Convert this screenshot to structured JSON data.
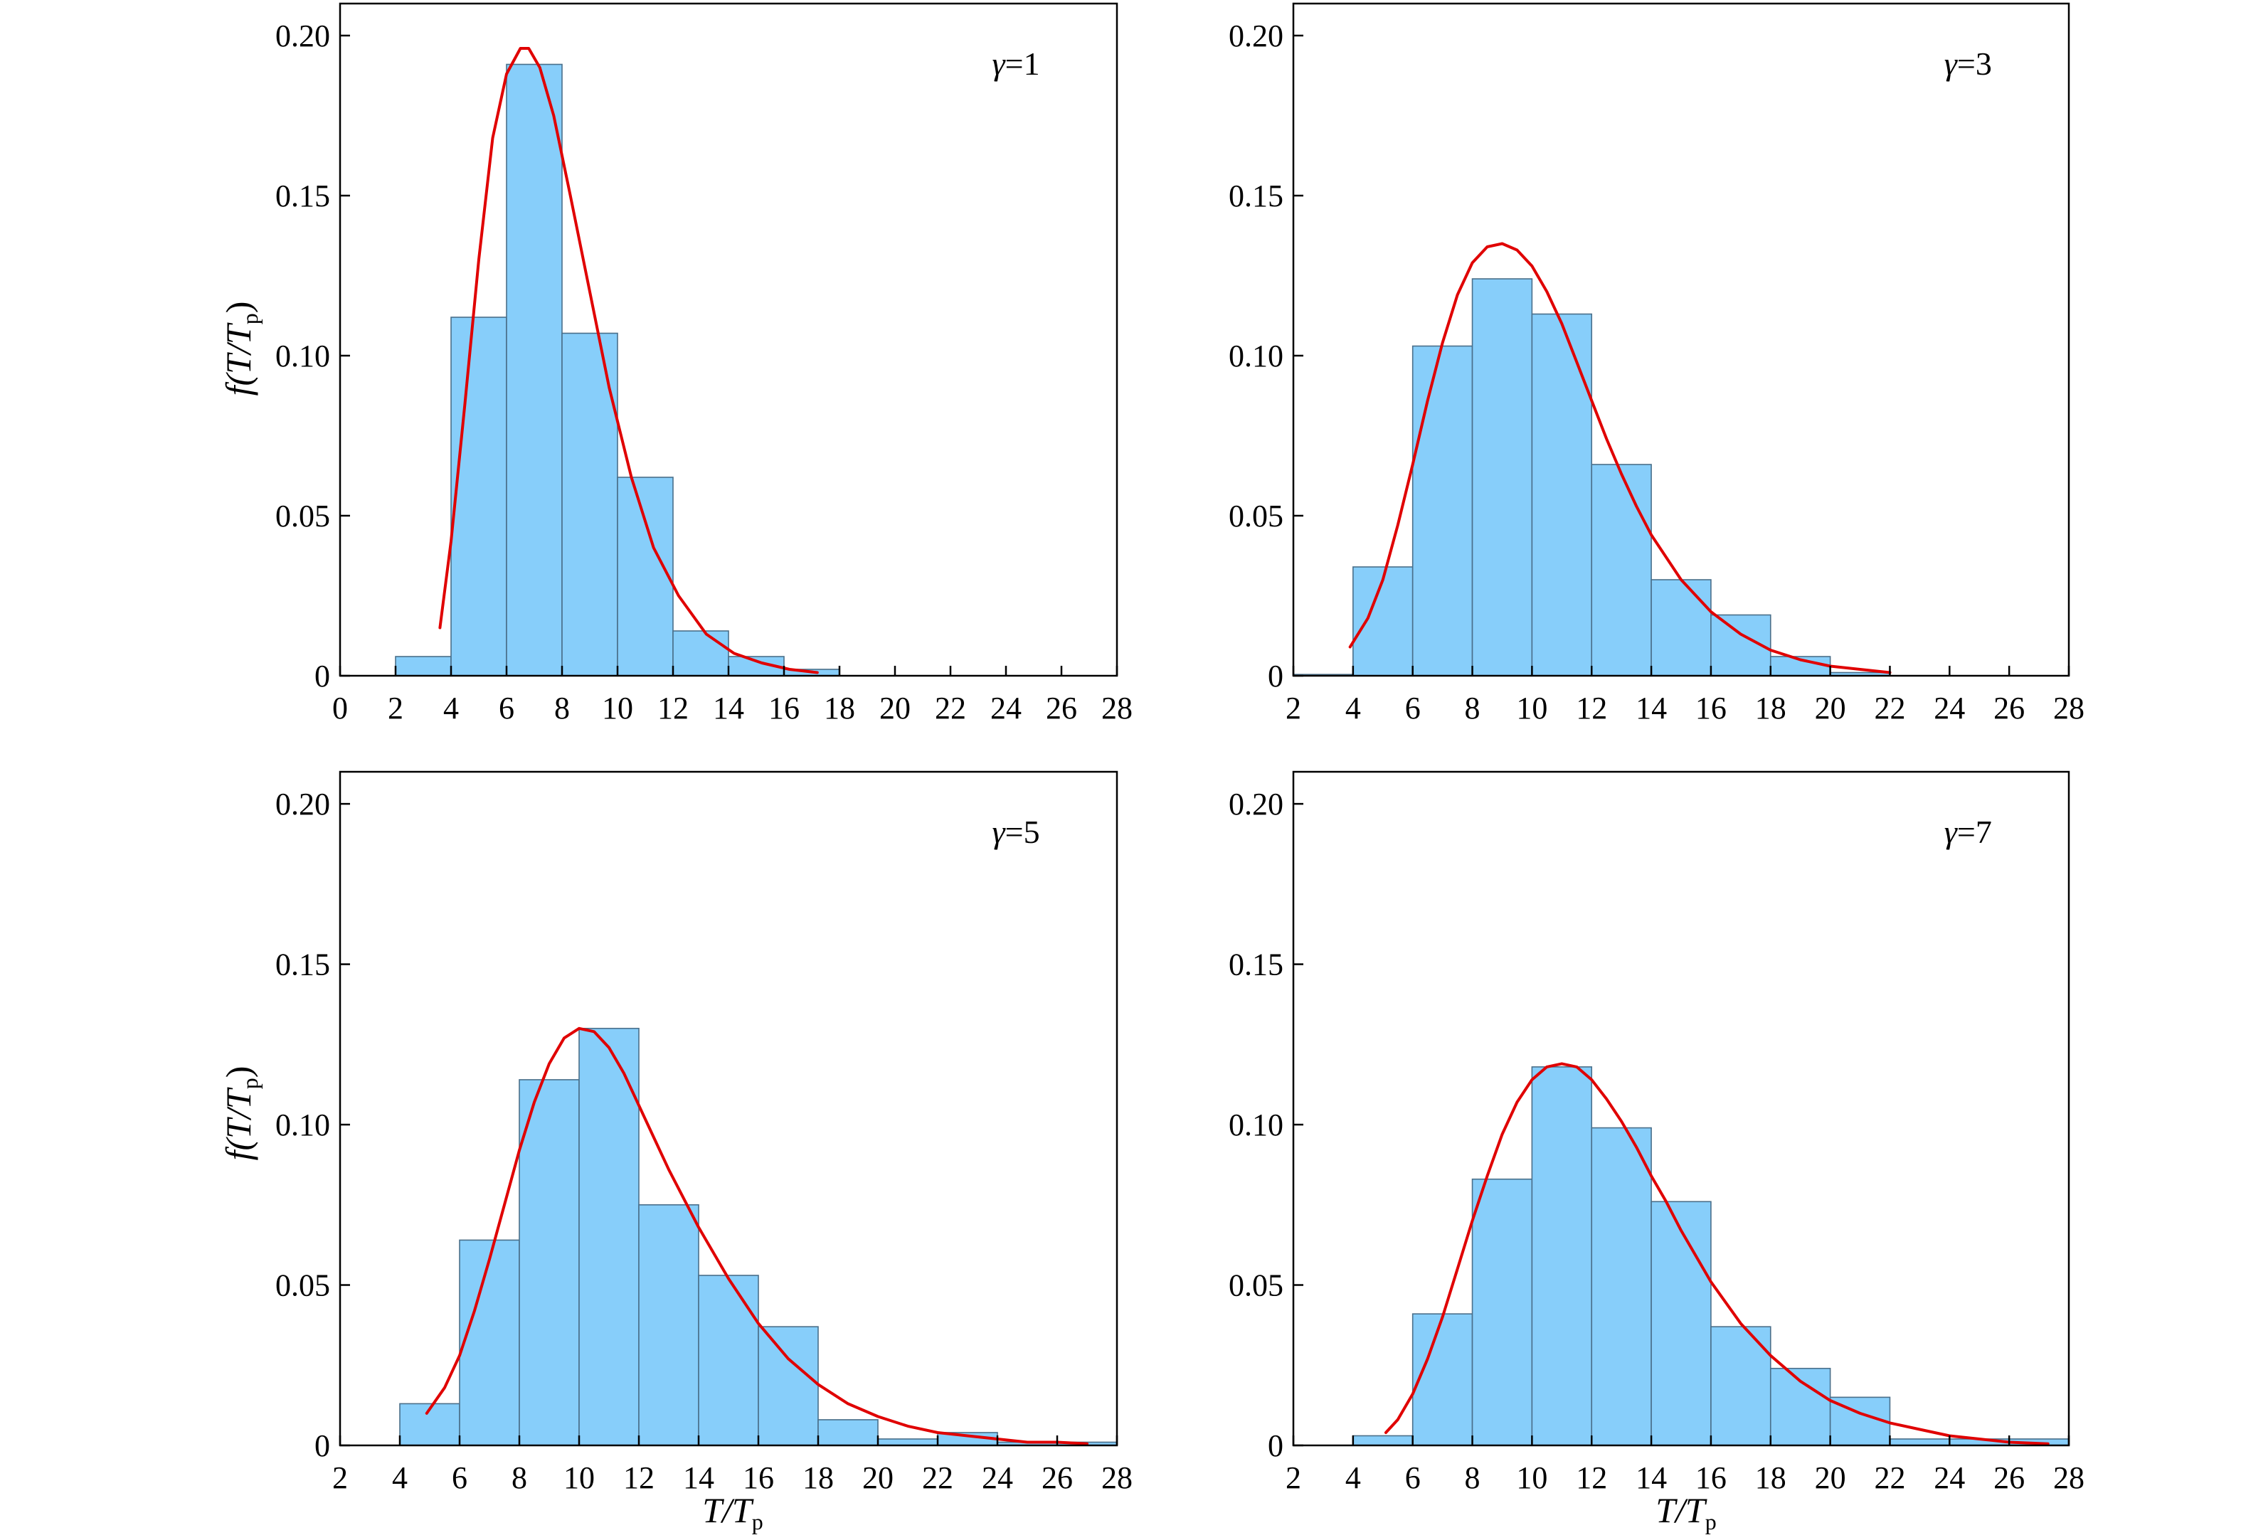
{
  "figure": {
    "ylabel_main": "f(T/T",
    "ylabel_sub": "p",
    "ylabel_close": ")",
    "xlabel_main": "T/T",
    "xlabel_sub": "p"
  },
  "chart_data": [
    {
      "type": "bar",
      "panel": "top-left",
      "annotation_symbol": "γ",
      "annotation_value": "=1",
      "xlim": [
        0,
        28
      ],
      "ylim": [
        0,
        0.21
      ],
      "xticks": [
        "0",
        "2",
        "4",
        "6",
        "8",
        "10",
        "12",
        "14",
        "16",
        "18",
        "20",
        "22",
        "24",
        "26",
        "28"
      ],
      "yticks": [
        "0",
        "0.05",
        "0.10",
        "0.15",
        "0.20"
      ],
      "bins": [
        {
          "x0": 2,
          "x1": 4,
          "y": 0.006
        },
        {
          "x0": 4,
          "x1": 6,
          "y": 0.112
        },
        {
          "x0": 6,
          "x1": 8,
          "y": 0.191
        },
        {
          "x0": 8,
          "x1": 10,
          "y": 0.107
        },
        {
          "x0": 10,
          "x1": 12,
          "y": 0.062
        },
        {
          "x0": 12,
          "x1": 14,
          "y": 0.014
        },
        {
          "x0": 14,
          "x1": 16,
          "y": 0.006
        },
        {
          "x0": 16,
          "x1": 18,
          "y": 0.002
        }
      ],
      "curve": {
        "x": [
          3.6,
          4.0,
          4.5,
          5.0,
          5.5,
          6.0,
          6.5,
          6.8,
          7.2,
          7.7,
          8.3,
          9.0,
          9.7,
          10.5,
          11.3,
          12.2,
          13.2,
          14.2,
          15.2,
          16.2,
          17.2
        ],
        "y": [
          0.015,
          0.042,
          0.085,
          0.13,
          0.168,
          0.188,
          0.196,
          0.196,
          0.19,
          0.175,
          0.15,
          0.12,
          0.09,
          0.062,
          0.04,
          0.025,
          0.013,
          0.007,
          0.004,
          0.002,
          0.001
        ]
      }
    },
    {
      "type": "bar",
      "panel": "top-right",
      "annotation_symbol": "γ",
      "annotation_value": "=3",
      "xlim": [
        2,
        28
      ],
      "ylim": [
        0,
        0.21
      ],
      "xticks": [
        "2",
        "4",
        "6",
        "8",
        "10",
        "12",
        "14",
        "16",
        "18",
        "20",
        "22",
        "24",
        "26",
        "28"
      ],
      "yticks": [
        "0",
        "0.05",
        "0.10",
        "0.15",
        "0.20"
      ],
      "bins": [
        {
          "x0": 2,
          "x1": 4,
          "y": 0.0004
        },
        {
          "x0": 4,
          "x1": 6,
          "y": 0.034
        },
        {
          "x0": 6,
          "x1": 8,
          "y": 0.103
        },
        {
          "x0": 8,
          "x1": 10,
          "y": 0.124
        },
        {
          "x0": 10,
          "x1": 12,
          "y": 0.113
        },
        {
          "x0": 12,
          "x1": 14,
          "y": 0.066
        },
        {
          "x0": 14,
          "x1": 16,
          "y": 0.03
        },
        {
          "x0": 16,
          "x1": 18,
          "y": 0.019
        },
        {
          "x0": 18,
          "x1": 20,
          "y": 0.006
        },
        {
          "x0": 20,
          "x1": 22,
          "y": 0.001
        }
      ],
      "curve": {
        "x": [
          3.9,
          4.5,
          5.0,
          5.5,
          6.0,
          6.5,
          7.0,
          7.5,
          8.0,
          8.5,
          9.0,
          9.5,
          10.0,
          10.5,
          11.0,
          11.5,
          12.0,
          12.5,
          13.0,
          13.5,
          14.0,
          15.0,
          16.0,
          17.0,
          18.0,
          19.0,
          20.0,
          21.0,
          22.0
        ],
        "y": [
          0.009,
          0.018,
          0.03,
          0.047,
          0.066,
          0.086,
          0.104,
          0.119,
          0.129,
          0.134,
          0.135,
          0.133,
          0.128,
          0.12,
          0.11,
          0.098,
          0.086,
          0.074,
          0.063,
          0.053,
          0.044,
          0.03,
          0.02,
          0.013,
          0.008,
          0.005,
          0.003,
          0.002,
          0.001
        ]
      }
    },
    {
      "type": "bar",
      "panel": "bottom-left",
      "annotation_symbol": "γ",
      "annotation_value": "=5",
      "xlim": [
        2,
        28
      ],
      "ylim": [
        0,
        0.21
      ],
      "xticks": [
        "2",
        "4",
        "6",
        "8",
        "10",
        "12",
        "14",
        "16",
        "18",
        "20",
        "22",
        "24",
        "26",
        "28"
      ],
      "yticks": [
        "0",
        "0.05",
        "0.10",
        "0.15",
        "0.20"
      ],
      "bins": [
        {
          "x0": 4,
          "x1": 6,
          "y": 0.013
        },
        {
          "x0": 6,
          "x1": 8,
          "y": 0.064
        },
        {
          "x0": 8,
          "x1": 10,
          "y": 0.114
        },
        {
          "x0": 10,
          "x1": 12,
          "y": 0.13
        },
        {
          "x0": 12,
          "x1": 14,
          "y": 0.075
        },
        {
          "x0": 14,
          "x1": 16,
          "y": 0.053
        },
        {
          "x0": 16,
          "x1": 18,
          "y": 0.037
        },
        {
          "x0": 18,
          "x1": 20,
          "y": 0.008
        },
        {
          "x0": 20,
          "x1": 22,
          "y": 0.002
        },
        {
          "x0": 22,
          "x1": 24,
          "y": 0.004
        },
        {
          "x0": 24,
          "x1": 26,
          "y": 0.001
        },
        {
          "x0": 26,
          "x1": 28,
          "y": 0.001
        }
      ],
      "curve": {
        "x": [
          4.9,
          5.5,
          6.0,
          6.5,
          7.0,
          7.5,
          8.0,
          8.5,
          9.0,
          9.5,
          10.0,
          10.5,
          11.0,
          11.5,
          12.0,
          12.5,
          13.0,
          13.5,
          14.0,
          15.0,
          16.0,
          17.0,
          18.0,
          19.0,
          20.0,
          21.0,
          22.0,
          23.0,
          24.0,
          25.0,
          26.0,
          27.0
        ],
        "y": [
          0.01,
          0.018,
          0.028,
          0.042,
          0.058,
          0.075,
          0.092,
          0.107,
          0.119,
          0.127,
          0.13,
          0.129,
          0.124,
          0.116,
          0.106,
          0.096,
          0.086,
          0.077,
          0.068,
          0.052,
          0.038,
          0.027,
          0.019,
          0.013,
          0.009,
          0.006,
          0.004,
          0.003,
          0.002,
          0.001,
          0.001,
          0.0005
        ]
      }
    },
    {
      "type": "bar",
      "panel": "bottom-right",
      "annotation_symbol": "γ",
      "annotation_value": "=7",
      "xlim": [
        2,
        28
      ],
      "ylim": [
        0,
        0.21
      ],
      "xticks": [
        "2",
        "4",
        "6",
        "8",
        "10",
        "12",
        "14",
        "16",
        "18",
        "20",
        "22",
        "24",
        "26",
        "28"
      ],
      "yticks": [
        "0",
        "0.05",
        "0.10",
        "0.15",
        "0.20"
      ],
      "bins": [
        {
          "x0": 4,
          "x1": 6,
          "y": 0.003
        },
        {
          "x0": 6,
          "x1": 8,
          "y": 0.041
        },
        {
          "x0": 8,
          "x1": 10,
          "y": 0.083
        },
        {
          "x0": 10,
          "x1": 12,
          "y": 0.118
        },
        {
          "x0": 12,
          "x1": 14,
          "y": 0.099
        },
        {
          "x0": 14,
          "x1": 16,
          "y": 0.076
        },
        {
          "x0": 16,
          "x1": 18,
          "y": 0.037
        },
        {
          "x0": 18,
          "x1": 20,
          "y": 0.024
        },
        {
          "x0": 20,
          "x1": 22,
          "y": 0.015
        },
        {
          "x0": 22,
          "x1": 24,
          "y": 0.002
        },
        {
          "x0": 24,
          "x1": 26,
          "y": 0.002
        },
        {
          "x0": 26,
          "x1": 28,
          "y": 0.002
        }
      ],
      "curve": {
        "x": [
          5.1,
          5.5,
          6.0,
          6.5,
          7.0,
          7.5,
          8.0,
          8.5,
          9.0,
          9.5,
          10.0,
          10.5,
          11.0,
          11.5,
          12.0,
          12.5,
          13.0,
          13.5,
          14.0,
          14.5,
          15.0,
          16.0,
          17.0,
          18.0,
          19.0,
          20.0,
          21.0,
          22.0,
          23.0,
          24.0,
          25.0,
          26.0,
          27.3
        ],
        "y": [
          0.004,
          0.008,
          0.016,
          0.027,
          0.04,
          0.055,
          0.07,
          0.084,
          0.097,
          0.107,
          0.114,
          0.118,
          0.119,
          0.118,
          0.114,
          0.108,
          0.101,
          0.093,
          0.084,
          0.076,
          0.067,
          0.051,
          0.038,
          0.028,
          0.02,
          0.014,
          0.01,
          0.007,
          0.005,
          0.003,
          0.002,
          0.001,
          0.0005
        ]
      }
    }
  ]
}
